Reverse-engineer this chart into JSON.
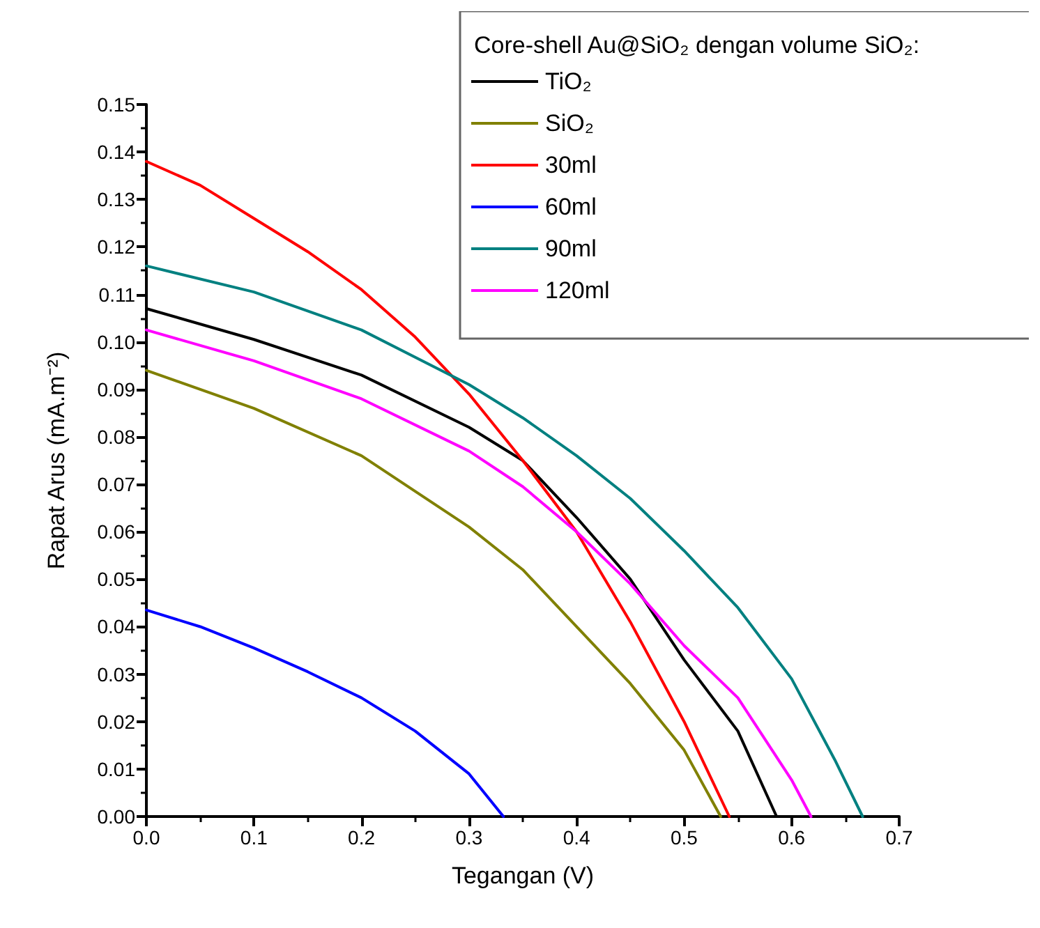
{
  "chart_data": {
    "type": "line",
    "xlabel": "Tegangan (V)",
    "ylabel": "Rapat Arus (mA.m⁻²)",
    "legend_title": "Core-shell Au@SiO₂ dengan volume SiO₂:",
    "legend": "top right",
    "grid": false,
    "marker": "none",
    "line_style": "solid",
    "xlim": [
      0,
      0.7
    ],
    "ylim": [
      0,
      0.15
    ],
    "xticks": [
      {
        "value": 0,
        "label": "0.0"
      },
      {
        "value": 0.1,
        "label": "0.1"
      },
      {
        "value": 0.2,
        "label": "0.2"
      },
      {
        "value": 0.3,
        "label": "0.3"
      },
      {
        "value": 0.4,
        "label": "0.4"
      },
      {
        "value": 0.5,
        "label": "0.5"
      },
      {
        "value": 0.6,
        "label": "0.6"
      },
      {
        "value": 0.7,
        "label": "0.7"
      }
    ],
    "yticks": [
      {
        "value": 0,
        "label": "0.00"
      },
      {
        "value": 0.01,
        "label": "0.01"
      },
      {
        "value": 0.02,
        "label": "0.02"
      },
      {
        "value": 0.03,
        "label": "0.03"
      },
      {
        "value": 0.04,
        "label": "0.04"
      },
      {
        "value": 0.05,
        "label": "0.05"
      },
      {
        "value": 0.06,
        "label": "0.06"
      },
      {
        "value": 0.07,
        "label": "0.07"
      },
      {
        "value": 0.08,
        "label": "0.08"
      },
      {
        "value": 0.09,
        "label": "0.09"
      },
      {
        "value": 0.1,
        "label": "0.10"
      },
      {
        "value": 0.11,
        "label": "0.11"
      },
      {
        "value": 0.12,
        "label": "0.12"
      },
      {
        "value": 0.13,
        "label": "0.13"
      },
      {
        "value": 0.14,
        "label": "0.14"
      },
      {
        "value": 0.15,
        "label": "0.15"
      }
    ],
    "series": [
      {
        "name": "TiO₂",
        "color": "#000000",
        "x": [
          0,
          0.1,
          0.2,
          0.3,
          0.35,
          0.4,
          0.45,
          0.5,
          0.55,
          0.586
        ],
        "values": [
          0.107,
          0.1005,
          0.093,
          0.082,
          0.075,
          0.063,
          0.05,
          0.033,
          0.018,
          0
        ]
      },
      {
        "name": "SiO₂",
        "color": "#808000",
        "x": [
          0,
          0.1,
          0.2,
          0.3,
          0.35,
          0.4,
          0.45,
          0.5,
          0.534
        ],
        "values": [
          0.094,
          0.086,
          0.076,
          0.061,
          0.052,
          0.04,
          0.028,
          0.014,
          0
        ]
      },
      {
        "name": "30ml",
        "color": "#ff0000",
        "x": [
          0,
          0.05,
          0.1,
          0.15,
          0.2,
          0.25,
          0.3,
          0.35,
          0.4,
          0.45,
          0.5,
          0.542
        ],
        "values": [
          0.138,
          0.133,
          0.126,
          0.119,
          0.111,
          0.101,
          0.089,
          0.075,
          0.06,
          0.041,
          0.02,
          0
        ]
      },
      {
        "name": "60ml",
        "color": "#0000ff",
        "x": [
          0,
          0.05,
          0.1,
          0.15,
          0.2,
          0.25,
          0.3,
          0.332
        ],
        "values": [
          0.0435,
          0.04,
          0.0355,
          0.0305,
          0.025,
          0.018,
          0.009,
          0
        ]
      },
      {
        "name": "90ml",
        "color": "#008080",
        "x": [
          0,
          0.1,
          0.2,
          0.3,
          0.35,
          0.4,
          0.45,
          0.5,
          0.55,
          0.6,
          0.64,
          0.666
        ],
        "values": [
          0.116,
          0.1105,
          0.1025,
          0.091,
          0.084,
          0.076,
          0.067,
          0.056,
          0.044,
          0.029,
          0.012,
          0
        ]
      },
      {
        "name": "120ml",
        "color": "#ff00ff",
        "x": [
          0,
          0.1,
          0.2,
          0.3,
          0.35,
          0.4,
          0.45,
          0.5,
          0.55,
          0.6,
          0.618
        ],
        "values": [
          0.1025,
          0.096,
          0.088,
          0.077,
          0.0695,
          0.06,
          0.049,
          0.036,
          0.025,
          0.0077,
          0
        ]
      }
    ]
  }
}
